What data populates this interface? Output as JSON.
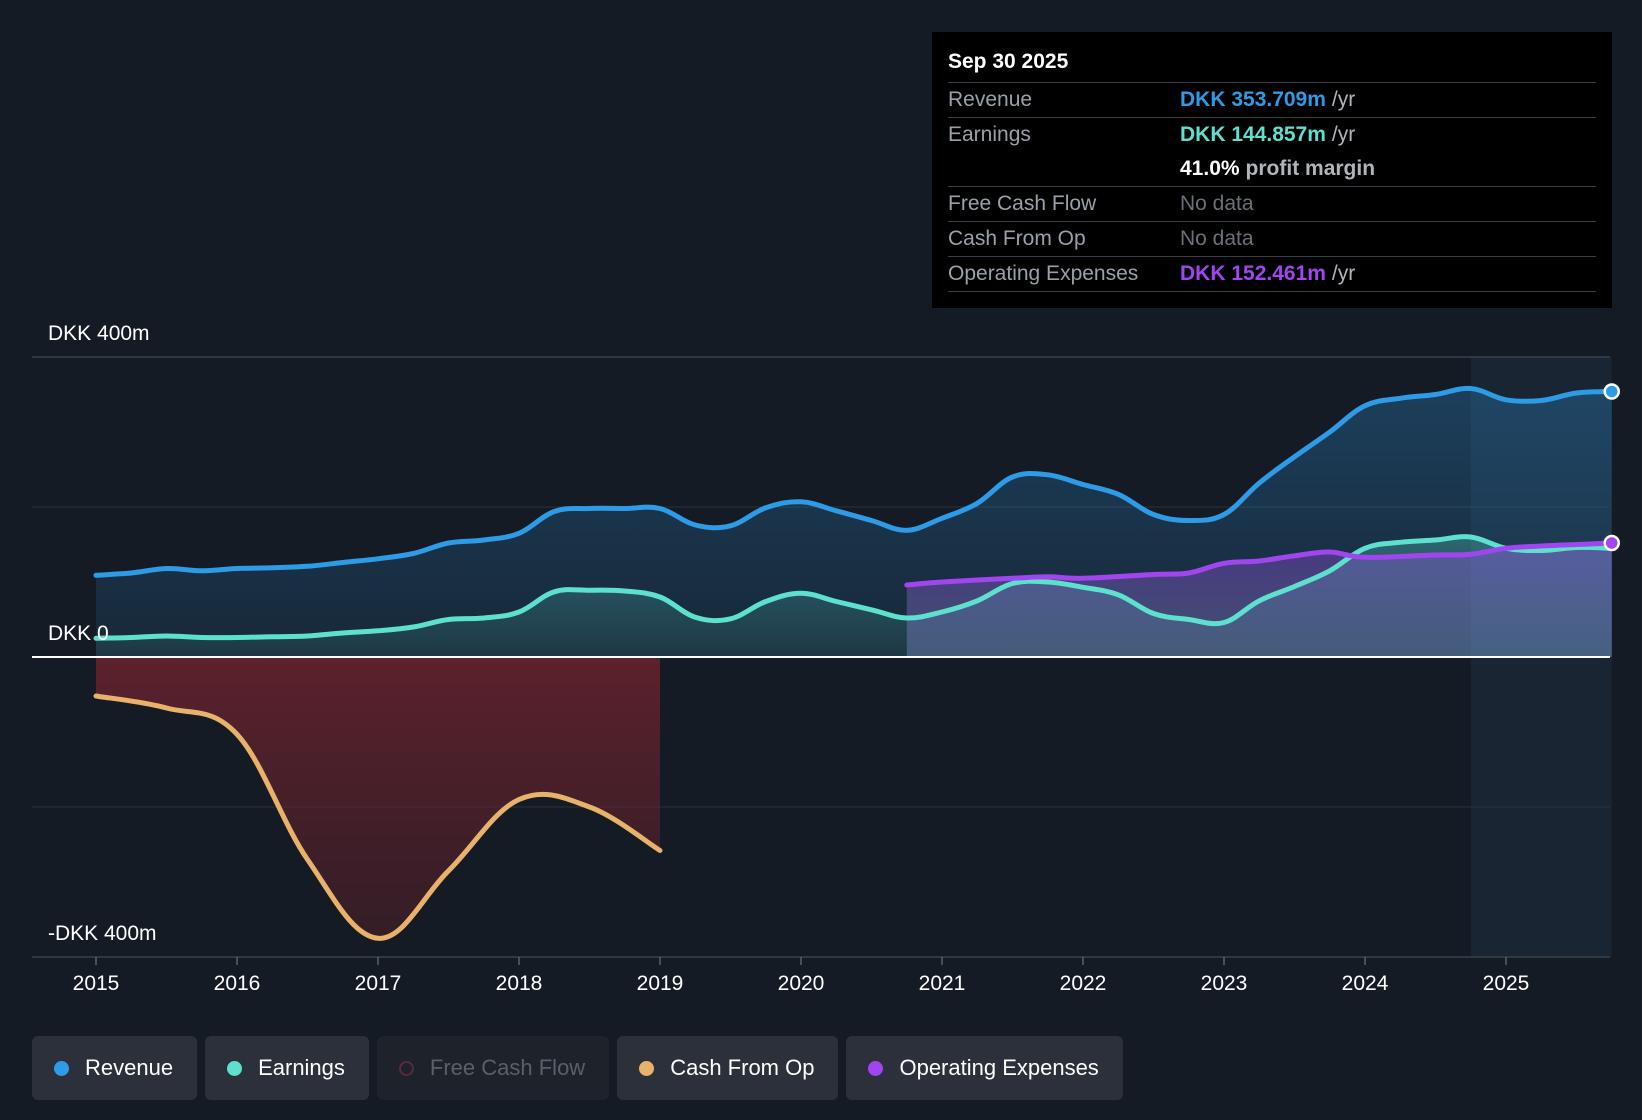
{
  "colors": {
    "revenue": "#2e9be6",
    "earnings": "#5de0cd",
    "free_cash_flow": "#e5427a",
    "cash_from_op": "#e9b26a",
    "operating_expenses": "#a145ef"
  },
  "tooltip": {
    "date": "Sep 30 2025",
    "revenue_label": "Revenue",
    "revenue_value": "DKK 353.709m",
    "revenue_unit": "/yr",
    "earnings_label": "Earnings",
    "earnings_value": "DKK 144.857m",
    "earnings_unit": "/yr",
    "margin_value": "41.0%",
    "margin_label": "profit margin",
    "fcf_label": "Free Cash Flow",
    "fcf_value": "No data",
    "cfo_label": "Cash From Op",
    "cfo_value": "No data",
    "opex_label": "Operating Expenses",
    "opex_value": "DKK 152.461m",
    "opex_unit": "/yr"
  },
  "legend": {
    "revenue": "Revenue",
    "earnings": "Earnings",
    "free_cash_flow": "Free Cash Flow",
    "cash_from_op": "Cash From Op",
    "operating_expenses": "Operating Expenses"
  },
  "chart_data": {
    "type": "area",
    "title": "",
    "xlabel": "",
    "ylabel": "",
    "ylim": [
      -400,
      400
    ],
    "y_tick_labels": [
      "DKK 400m",
      "DKK 0",
      "-DKK 400m"
    ],
    "x_tick_labels": [
      "2015",
      "2016",
      "2017",
      "2018",
      "2019",
      "2020",
      "2021",
      "2022",
      "2023",
      "2024",
      "2025"
    ],
    "x_ticks": [
      2015,
      2016,
      2017,
      2018,
      2019,
      2020,
      2021,
      2022,
      2023,
      2024,
      2025
    ],
    "xlim": [
      2015,
      2025.75
    ],
    "forecast_start": 2024.75,
    "series": [
      {
        "name": "Revenue",
        "key": "revenue",
        "x": [
          2015.0,
          2015.25,
          2015.5,
          2015.75,
          2016.0,
          2016.25,
          2016.5,
          2016.75,
          2017.0,
          2017.25,
          2017.5,
          2017.75,
          2018.0,
          2018.25,
          2018.5,
          2018.75,
          2019.0,
          2019.25,
          2019.5,
          2019.75,
          2020.0,
          2020.25,
          2020.5,
          2020.75,
          2021.0,
          2021.25,
          2021.5,
          2021.75,
          2022.0,
          2022.25,
          2022.5,
          2022.75,
          2023.0,
          2023.25,
          2023.5,
          2023.75,
          2024.0,
          2024.25,
          2024.5,
          2024.75,
          2025.0,
          2025.25,
          2025.5,
          2025.75
        ],
        "values": [
          109,
          112,
          118,
          115,
          118,
          119,
          121,
          126,
          131,
          138,
          152,
          156,
          165,
          194,
          198,
          198,
          198,
          176,
          175,
          199,
          207,
          195,
          182,
          169,
          185,
          205,
          240,
          243,
          230,
          217,
          190,
          182,
          190,
          232,
          267,
          300,
          335,
          345,
          350,
          358,
          343,
          342,
          352,
          354
        ]
      },
      {
        "name": "Earnings",
        "key": "earnings",
        "x": [
          2015.0,
          2015.25,
          2015.5,
          2015.75,
          2016.0,
          2016.25,
          2016.5,
          2016.75,
          2017.0,
          2017.25,
          2017.5,
          2017.75,
          2018.0,
          2018.25,
          2018.5,
          2018.75,
          2019.0,
          2019.25,
          2019.5,
          2019.75,
          2020.0,
          2020.25,
          2020.5,
          2020.75,
          2021.0,
          2021.25,
          2021.5,
          2021.75,
          2022.0,
          2022.25,
          2022.5,
          2022.75,
          2023.0,
          2023.25,
          2023.5,
          2023.75,
          2024.0,
          2024.25,
          2024.5,
          2024.75,
          2025.0,
          2025.25,
          2025.5,
          2025.75
        ],
        "values": [
          25,
          26,
          28,
          26,
          26,
          27,
          28,
          32,
          35,
          40,
          50,
          52,
          60,
          87,
          89,
          88,
          80,
          53,
          51,
          74,
          85,
          74,
          63,
          52,
          60,
          75,
          98,
          100,
          93,
          83,
          58,
          50,
          46,
          75,
          94,
          115,
          145,
          153,
          156,
          160,
          145,
          142,
          146,
          145
        ]
      },
      {
        "name": "Cash From Op",
        "key": "cash_from_op",
        "x": [
          2015.0,
          2015.5,
          2016.0,
          2016.5,
          2017.0,
          2017.5,
          2018.0,
          2018.5,
          2019.0
        ],
        "values": [
          -52,
          -68,
          -103,
          -270,
          -375,
          -285,
          -190,
          -200,
          -258
        ]
      },
      {
        "name": "Operating Expenses",
        "key": "operating_expenses",
        "x": [
          2020.75,
          2021.0,
          2021.5,
          2021.75,
          2022.0,
          2022.5,
          2022.75,
          2023.0,
          2023.25,
          2023.5,
          2023.75,
          2024.0,
          2024.5,
          2024.75,
          2025.0,
          2025.25,
          2025.5,
          2025.75
        ],
        "values": [
          96,
          100,
          105,
          107,
          105,
          110,
          112,
          125,
          128,
          135,
          140,
          133,
          136,
          137,
          145,
          148,
          150,
          152
        ]
      }
    ]
  }
}
